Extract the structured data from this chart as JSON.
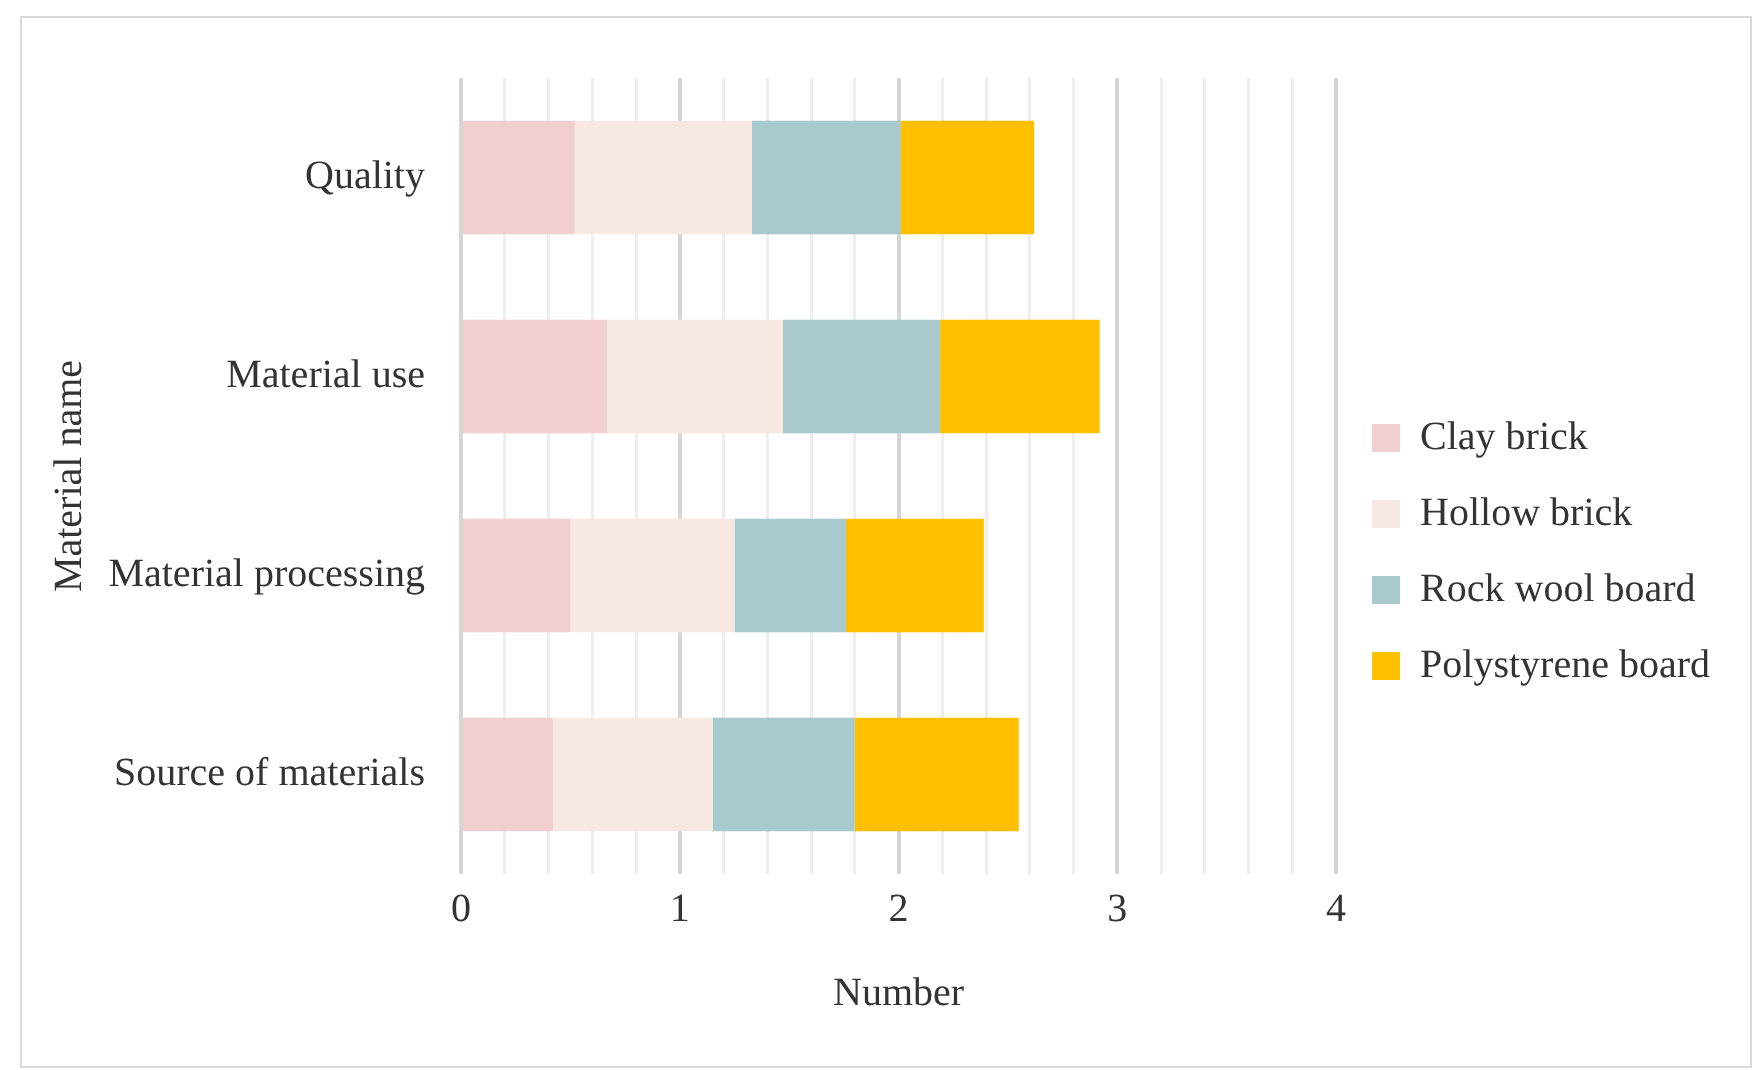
{
  "chart_data": {
    "type": "bar",
    "orientation": "horizontal",
    "stacked": true,
    "xlabel": "Number",
    "ylabel": "Material name",
    "categories": [
      "Quality",
      "Material use",
      "Material processing",
      "Source of materials"
    ],
    "series": [
      {
        "name": "Clay brick",
        "color": "#f1cfcf",
        "values": [
          0.52,
          0.67,
          0.5,
          0.42
        ]
      },
      {
        "name": "Hollow brick",
        "color": "#f8e8e2",
        "values": [
          0.81,
          0.8,
          0.75,
          0.73
        ]
      },
      {
        "name": "Rock wool board",
        "color": "#a9cacc",
        "values": [
          0.68,
          0.72,
          0.51,
          0.65
        ]
      },
      {
        "name": "Polystyrene board",
        "color": "#ffc000",
        "values": [
          0.61,
          0.73,
          0.63,
          0.75
        ]
      }
    ],
    "xlim": [
      0,
      4
    ],
    "xticks": [
      0,
      {
        "value": 0.2,
        "label": null
      },
      {
        "value": 0.4,
        "label": null
      },
      {
        "value": 0.6,
        "label": null
      },
      {
        "value": 0.8,
        "label": null
      },
      1,
      {
        "value": 1.2,
        "label": null
      },
      {
        "value": 1.4,
        "label": null
      },
      {
        "value": 1.6,
        "label": null
      },
      {
        "value": 1.8,
        "label": null
      },
      2,
      {
        "value": 2.2,
        "label": null
      },
      {
        "value": 2.4,
        "label": null
      },
      {
        "value": 2.6,
        "label": null
      },
      {
        "value": 2.8,
        "label": null
      },
      3,
      {
        "value": 3.2,
        "label": null
      },
      {
        "value": 3.4,
        "label": null
      },
      {
        "value": 3.6,
        "label": null
      },
      {
        "value": 3.8,
        "label": null
      },
      4
    ],
    "grid": "x",
    "legend": "right"
  }
}
